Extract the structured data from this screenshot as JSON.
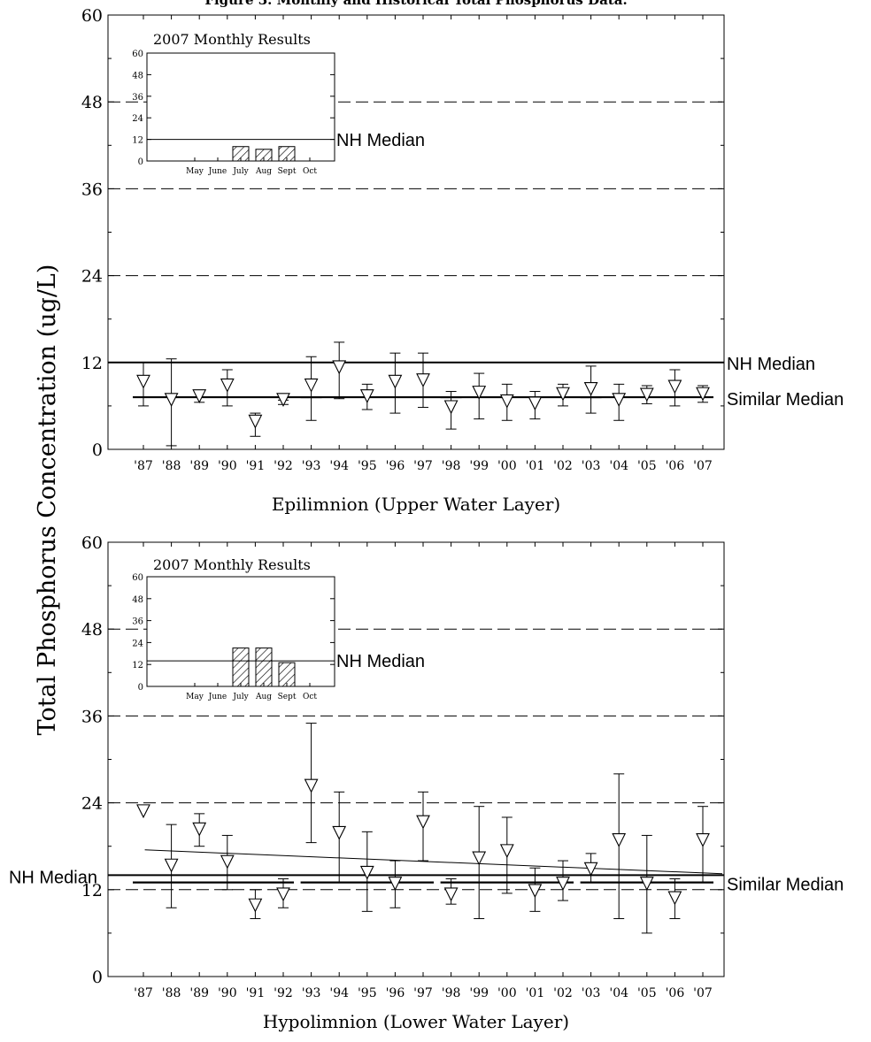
{
  "figure": {
    "title": "Figure 3. Monthly and Historical Total Phosphorus Data.",
    "y_axis_label": "Total Phosphorus Concentration (ug/L)"
  },
  "chart_data": [
    {
      "id": "epi",
      "type": "scatter",
      "caption": "Epilimnion (Upper Water Layer)",
      "categories": [
        "'87",
        "'88",
        "'89",
        "'90",
        "'91",
        "'92",
        "'93",
        "'94",
        "'95",
        "'96",
        "'97",
        "'98",
        "'99",
        "'00",
        "'01",
        "'02",
        "'03",
        "'04",
        "'05",
        "'06",
        "'07"
      ],
      "ylim": [
        0,
        60
      ],
      "yticks": [
        0,
        12,
        24,
        36,
        48,
        60
      ],
      "means": [
        9.0,
        6.5,
        7.0,
        8.5,
        3.5,
        6.5,
        8.5,
        11.0,
        7.0,
        9.0,
        9.2,
        5.5,
        7.5,
        6.3,
        6.0,
        7.3,
        8.0,
        6.5,
        7.2,
        8.3,
        7.3
      ],
      "mins": [
        6.0,
        0.5,
        6.5,
        6.0,
        1.8,
        6.2,
        4.0,
        7.0,
        5.5,
        5.0,
        5.8,
        2.8,
        4.2,
        4.0,
        4.2,
        6.0,
        5.0,
        4.0,
        6.3,
        6.0,
        6.5
      ],
      "maxs": [
        12.0,
        12.5,
        8.0,
        11.0,
        5.0,
        6.8,
        12.8,
        14.8,
        9.0,
        13.3,
        13.3,
        8.0,
        10.5,
        9.0,
        8.0,
        9.0,
        11.5,
        9.0,
        8.8,
        11.0,
        8.8
      ],
      "reference_lines": [
        {
          "label": "NH Median",
          "value": 12.0
        },
        {
          "label": "Similar Median",
          "value": 7.2
        }
      ],
      "similar_median_segments": [
        [
          "'87",
          "'93"
        ],
        [
          "'93",
          "'98"
        ],
        [
          "'98",
          "'03"
        ],
        [
          "'03",
          "'07"
        ]
      ],
      "trend": null,
      "inset": {
        "title": "2007 Monthly Results",
        "categories": [
          "May",
          "June",
          "July",
          "Aug",
          "Sept",
          "Oct"
        ],
        "values": [
          null,
          null,
          8.0,
          6.5,
          8.0,
          null
        ],
        "ylim": [
          0,
          60
        ],
        "yticks": [
          0,
          12,
          24,
          36,
          48,
          60
        ],
        "reference": {
          "label": "NH Median",
          "value": 12.0
        }
      }
    },
    {
      "id": "hypo",
      "type": "scatter",
      "caption": "Hypolimnion (Lower Water Layer)",
      "categories": [
        "'87",
        "'88",
        "'89",
        "'90",
        "'91",
        "'92",
        "'93",
        "'94",
        "'95",
        "'96",
        "'97",
        "'98",
        "'99",
        "'00",
        "'01",
        "'02",
        "'03",
        "'04",
        "'05",
        "'06",
        "'07"
      ],
      "ylim": [
        0,
        60
      ],
      "yticks": [
        0,
        12,
        24,
        36,
        48,
        60
      ],
      "means": [
        22.5,
        15.0,
        20.0,
        15.5,
        9.5,
        11.0,
        26.0,
        19.5,
        14.0,
        12.5,
        21.0,
        11.0,
        16.0,
        17.0,
        11.5,
        12.5,
        14.5,
        18.5,
        12.5,
        10.5,
        18.5
      ],
      "mins": [
        null,
        9.5,
        18.0,
        12.0,
        8.0,
        9.5,
        18.5,
        13.0,
        9.0,
        9.5,
        16.0,
        10.0,
        8.0,
        11.5,
        9.0,
        10.5,
        13.0,
        8.0,
        6.0,
        8.0,
        13.0
      ],
      "maxs": [
        null,
        21.0,
        22.5,
        19.5,
        12.0,
        13.5,
        35.0,
        25.5,
        20.0,
        16.0,
        25.5,
        13.5,
        23.5,
        22.0,
        15.0,
        16.0,
        17.0,
        28.0,
        19.5,
        13.5,
        23.5
      ],
      "reference_lines": [
        {
          "label": "NH Median",
          "value": 14.0
        },
        {
          "label": "Similar Median",
          "value": 13.0
        }
      ],
      "similar_median_segments": [
        [
          "'87",
          "'92"
        ],
        [
          "'93",
          "'97"
        ],
        [
          "'98",
          "'02"
        ],
        [
          "'03",
          "'07"
        ]
      ],
      "trend": {
        "from": [
          "'88",
          17.5
        ],
        "to": [
          "'07",
          14.2
        ]
      },
      "inset": {
        "title": "2007 Monthly Results",
        "categories": [
          "May",
          "June",
          "July",
          "Aug",
          "Sept",
          "Oct"
        ],
        "values": [
          null,
          null,
          21.0,
          21.0,
          13.0,
          null
        ],
        "ylim": [
          0,
          60
        ],
        "yticks": [
          0,
          12,
          24,
          36,
          48,
          60
        ],
        "reference": {
          "label": "NH Median",
          "value": 14.0
        }
      }
    }
  ]
}
